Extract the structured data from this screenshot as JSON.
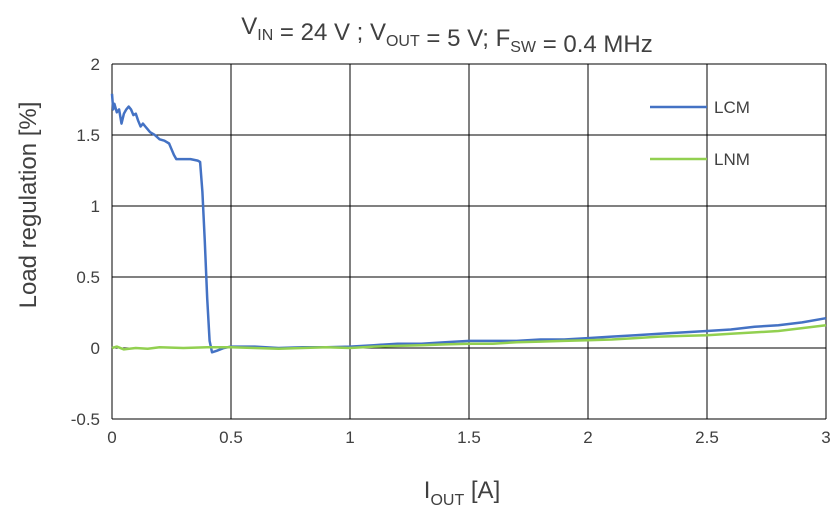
{
  "chart_data": {
    "type": "line",
    "title": {
      "parts": [
        {
          "text": "V",
          "sub": "IN"
        },
        {
          "text": " = 24 V ; V",
          "sub": "OUT"
        },
        {
          "text": " = 5 V; F",
          "sub": "SW"
        },
        {
          "text": " = 0.4 MHz",
          "sub": ""
        }
      ]
    },
    "xlabel": {
      "main": "I",
      "sub": "OUT",
      "rest": "  [A]"
    },
    "ylabel": "Load regulation  [%]",
    "xlim": [
      0,
      3
    ],
    "ylim": [
      -0.5,
      2
    ],
    "x_ticks": [
      "0",
      "0.5",
      "1",
      "1.5",
      "2",
      "2.5",
      "3"
    ],
    "y_ticks": [
      "-0.5",
      "0",
      "0.5",
      "1",
      "1.5",
      "2"
    ],
    "grid": true,
    "legend_position": "top-right",
    "series": [
      {
        "name": "LCM",
        "color": "#4472C4",
        "points": [
          [
            0.0,
            1.79
          ],
          [
            0.005,
            1.68
          ],
          [
            0.01,
            1.72
          ],
          [
            0.02,
            1.66
          ],
          [
            0.03,
            1.68
          ],
          [
            0.04,
            1.58
          ],
          [
            0.05,
            1.65
          ],
          [
            0.06,
            1.68
          ],
          [
            0.07,
            1.7
          ],
          [
            0.08,
            1.68
          ],
          [
            0.09,
            1.64
          ],
          [
            0.1,
            1.65
          ],
          [
            0.11,
            1.6
          ],
          [
            0.12,
            1.56
          ],
          [
            0.13,
            1.58
          ],
          [
            0.14,
            1.56
          ],
          [
            0.16,
            1.52
          ],
          [
            0.18,
            1.5
          ],
          [
            0.2,
            1.47
          ],
          [
            0.22,
            1.46
          ],
          [
            0.24,
            1.44
          ],
          [
            0.25,
            1.4
          ],
          [
            0.26,
            1.36
          ],
          [
            0.27,
            1.33
          ],
          [
            0.3,
            1.33
          ],
          [
            0.33,
            1.33
          ],
          [
            0.36,
            1.32
          ],
          [
            0.37,
            1.31
          ],
          [
            0.38,
            1.1
          ],
          [
            0.39,
            0.75
          ],
          [
            0.4,
            0.35
          ],
          [
            0.41,
            0.05
          ],
          [
            0.42,
            -0.03
          ],
          [
            0.44,
            -0.02
          ],
          [
            0.47,
            0.0
          ],
          [
            0.5,
            0.01
          ],
          [
            0.6,
            0.01
          ],
          [
            0.7,
            0.0
          ],
          [
            0.8,
            0.005
          ],
          [
            0.9,
            0.005
          ],
          [
            1.0,
            0.01
          ],
          [
            1.1,
            0.02
          ],
          [
            1.2,
            0.03
          ],
          [
            1.3,
            0.03
          ],
          [
            1.4,
            0.04
          ],
          [
            1.5,
            0.05
          ],
          [
            1.6,
            0.05
          ],
          [
            1.7,
            0.05
          ],
          [
            1.8,
            0.06
          ],
          [
            1.9,
            0.06
          ],
          [
            2.0,
            0.07
          ],
          [
            2.1,
            0.08
          ],
          [
            2.2,
            0.09
          ],
          [
            2.3,
            0.1
          ],
          [
            2.4,
            0.11
          ],
          [
            2.5,
            0.12
          ],
          [
            2.6,
            0.13
          ],
          [
            2.7,
            0.15
          ],
          [
            2.8,
            0.16
          ],
          [
            2.9,
            0.18
          ],
          [
            3.0,
            0.21
          ]
        ]
      },
      {
        "name": "LNM",
        "color": "#92D050",
        "points": [
          [
            0.0,
            0.0
          ],
          [
            0.02,
            0.01
          ],
          [
            0.05,
            -0.01
          ],
          [
            0.1,
            0.0
          ],
          [
            0.15,
            -0.005
          ],
          [
            0.2,
            0.005
          ],
          [
            0.3,
            0.0
          ],
          [
            0.4,
            0.005
          ],
          [
            0.5,
            0.005
          ],
          [
            0.6,
            0.0
          ],
          [
            0.7,
            -0.005
          ],
          [
            0.8,
            0.0
          ],
          [
            0.9,
            0.005
          ],
          [
            1.0,
            0.0
          ],
          [
            1.1,
            0.01
          ],
          [
            1.2,
            0.015
          ],
          [
            1.3,
            0.02
          ],
          [
            1.4,
            0.025
          ],
          [
            1.5,
            0.03
          ],
          [
            1.6,
            0.03
          ],
          [
            1.7,
            0.04
          ],
          [
            1.8,
            0.045
          ],
          [
            1.9,
            0.05
          ],
          [
            2.0,
            0.055
          ],
          [
            2.1,
            0.06
          ],
          [
            2.2,
            0.07
          ],
          [
            2.3,
            0.08
          ],
          [
            2.4,
            0.085
          ],
          [
            2.5,
            0.09
          ],
          [
            2.6,
            0.1
          ],
          [
            2.7,
            0.11
          ],
          [
            2.8,
            0.12
          ],
          [
            2.9,
            0.14
          ],
          [
            3.0,
            0.16
          ]
        ]
      }
    ]
  }
}
